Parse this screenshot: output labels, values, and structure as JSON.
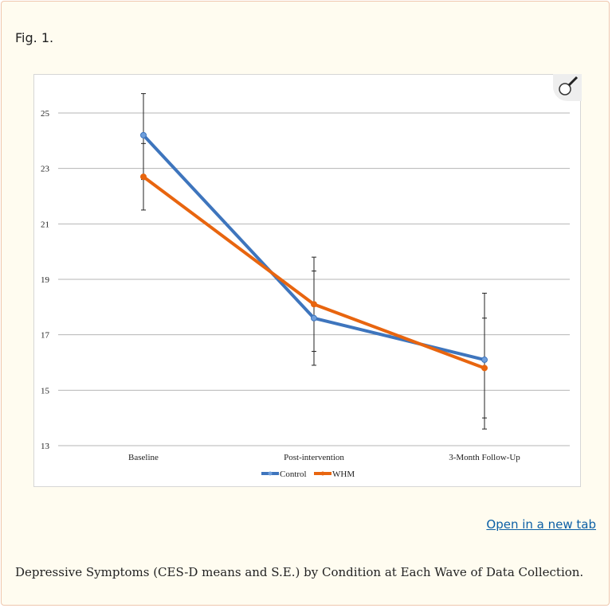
{
  "figure_label": "Fig. 1.",
  "open_link": "Open in a new tab",
  "caption": "Depressive Symptoms (CES-D means and S.E.) by Condition at Each Wave of Data Collection.",
  "icons": {
    "zoom": "magnifier-icon"
  },
  "chart_data": {
    "type": "line",
    "title": "",
    "xlabel": "",
    "ylabel": "",
    "categories": [
      "Baseline",
      "Post-intervention",
      "3-Month Follow-Up"
    ],
    "ylim": [
      13,
      25
    ],
    "yticks": [
      13,
      15,
      17,
      19,
      21,
      23,
      25
    ],
    "grid": true,
    "legend": "bottom",
    "series": [
      {
        "name": "Control",
        "color": "#3e75bd",
        "values": [
          24.2,
          17.6,
          16.1
        ],
        "error_low": [
          22.6,
          15.9,
          13.6
        ],
        "error_high": [
          25.7,
          19.3,
          18.5
        ]
      },
      {
        "name": "WHM",
        "color": "#e8650f",
        "values": [
          22.7,
          18.1,
          15.8
        ],
        "error_low": [
          21.5,
          16.4,
          14.0
        ],
        "error_high": [
          23.9,
          19.8,
          17.6
        ]
      }
    ]
  }
}
